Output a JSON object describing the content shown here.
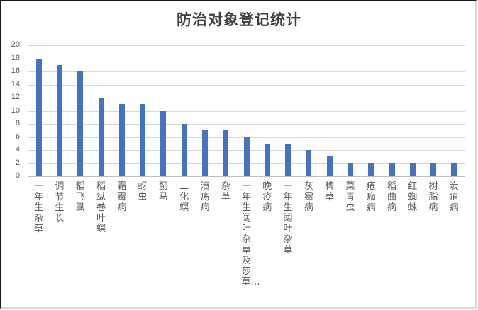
{
  "chart_data": {
    "type": "bar",
    "title": "防治对象登记统计",
    "xlabel": "",
    "ylabel": "",
    "ylim": [
      0,
      20
    ],
    "yticks": [
      0,
      2,
      4,
      6,
      8,
      10,
      12,
      14,
      16,
      18,
      20
    ],
    "grid": true,
    "legend": "none",
    "bar_color": "#4472c4",
    "categories": [
      "一年生杂草",
      "调节生长",
      "稻飞虱",
      "稻纵卷叶螟",
      "霜霉病",
      "蚜虫",
      "蓟马",
      "二化螟",
      "溃疡病",
      "杂草",
      "一年生阔叶杂草及莎草…",
      "晚疫病",
      "一年生阔叶杂草",
      "灰霉病",
      "稗草",
      "菜青虫",
      "疮痂病",
      "稻曲病",
      "红蜘蛛",
      "树脂病",
      "炭疽病"
    ],
    "values": [
      18,
      17,
      16,
      12,
      11,
      11,
      10,
      8,
      7,
      7,
      6,
      5,
      5,
      4,
      3,
      2,
      2,
      2,
      2,
      2,
      2
    ]
  }
}
